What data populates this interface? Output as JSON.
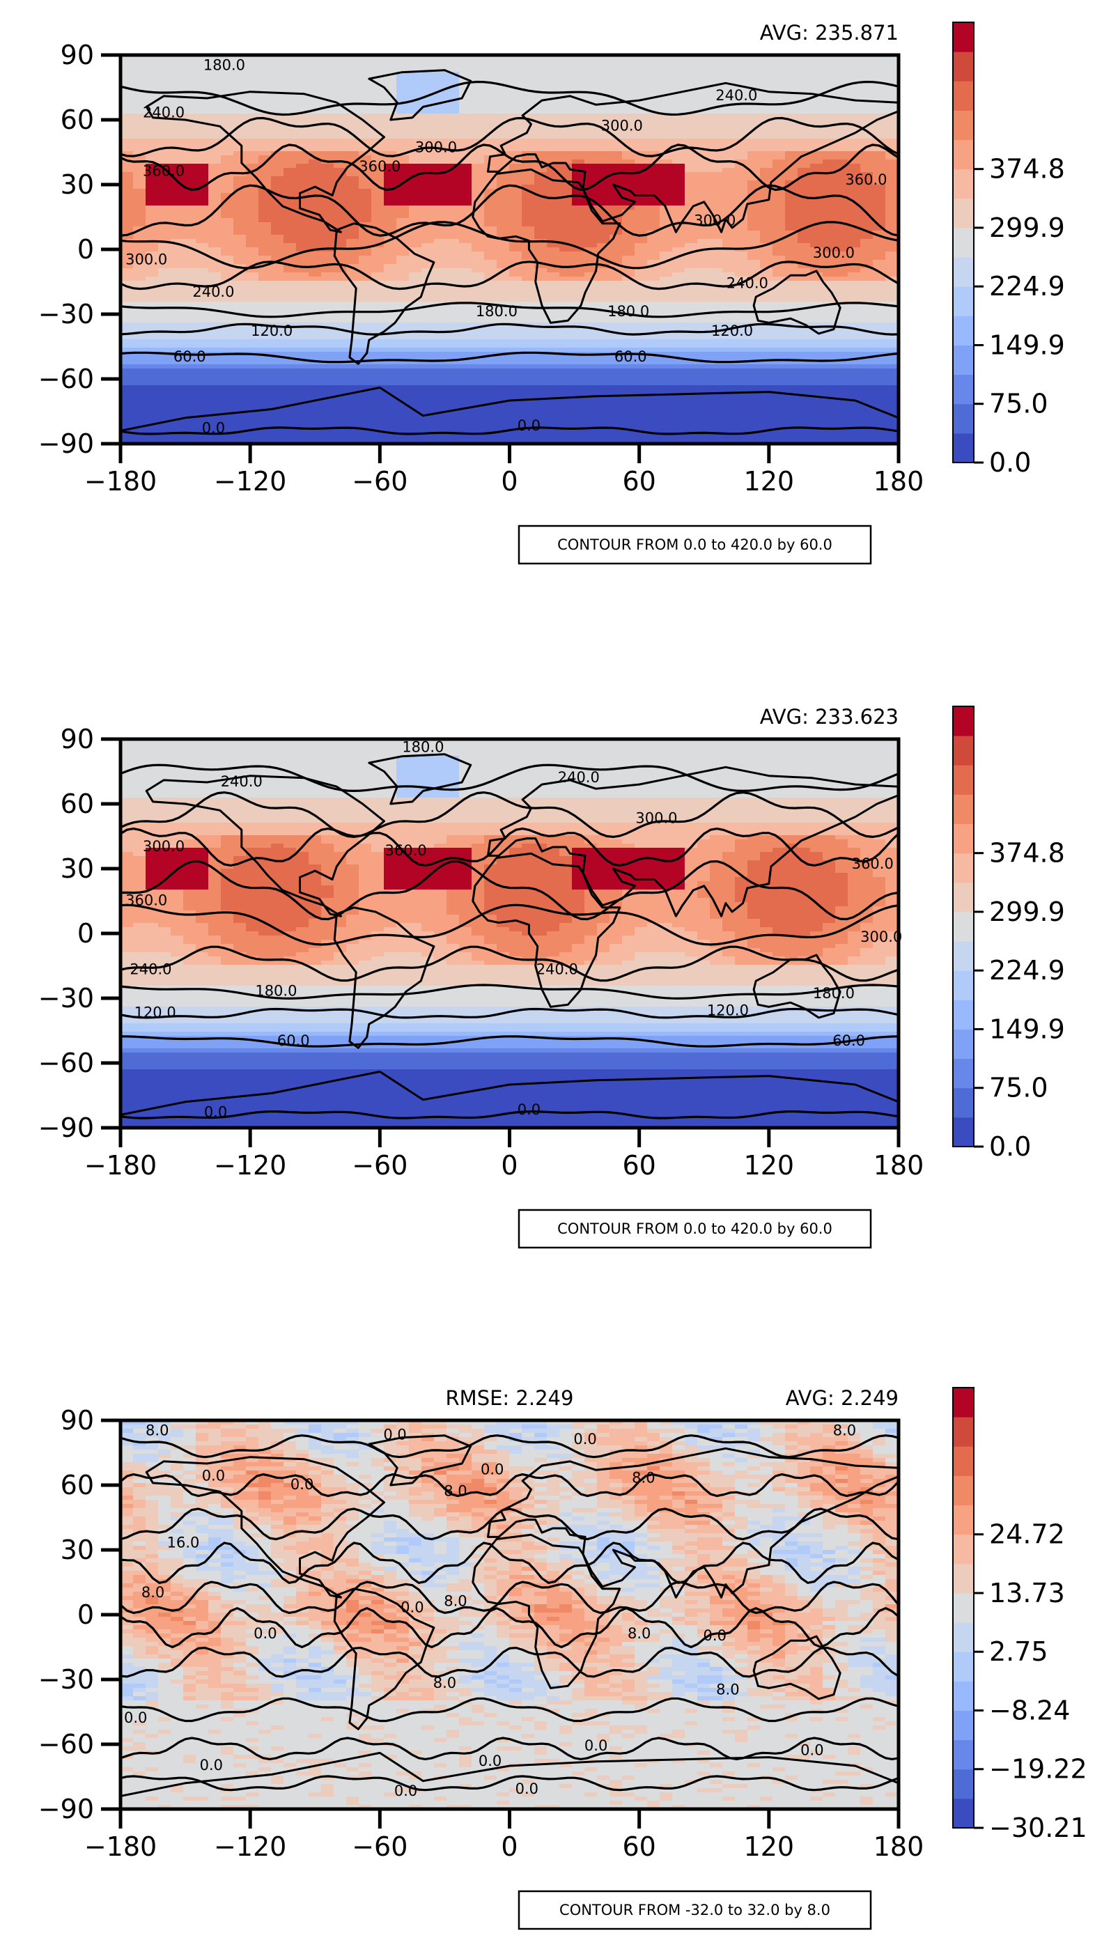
{
  "colors": {
    "ramp": [
      "#3b4cc0",
      "#4f6bd6",
      "#6788ea",
      "#7fa2f6",
      "#98b9fd",
      "#b0cbfa",
      "#c6d6f1",
      "#dbdcde",
      "#eccdbd",
      "#f5baa1",
      "#f6a283",
      "#f08a66",
      "#e36c4f",
      "#cf4a3a",
      "#b40426"
    ],
    "line": "#000000",
    "land_fill": "none"
  },
  "chart_data": [
    {
      "type": "heatmap",
      "panel": "test",
      "title": "",
      "left_text": "",
      "right_text": "AVG: 235.871",
      "xlim": [
        -180,
        180
      ],
      "ylim": [
        -90,
        90
      ],
      "xticks": [
        "-180",
        "-120",
        "-60",
        "0",
        "60",
        "120",
        "180"
      ],
      "yticks": [
        "90",
        "60",
        "30",
        "0",
        "-30",
        "-60",
        "-90"
      ],
      "colorbar": {
        "min": 0.0,
        "max": 420.0,
        "levels": 15,
        "ticks": [
          "0.0",
          "75.0",
          "149.9",
          "224.9",
          "299.9",
          "374.8"
        ]
      },
      "contour_note": "CONTOUR FROM 0.0 to 420.0 by 60.0",
      "contour_labels": [
        {
          "lon": -132,
          "lat": 85,
          "t": "180.0"
        },
        {
          "lon": -160,
          "lat": 63,
          "t": "240.0"
        },
        {
          "lon": 105,
          "lat": 71,
          "t": "240.0"
        },
        {
          "lon": 52,
          "lat": 57,
          "t": "300.0"
        },
        {
          "lon": -34,
          "lat": 47,
          "t": "300.0"
        },
        {
          "lon": -60,
          "lat": 38,
          "t": "360.0"
        },
        {
          "lon": -160,
          "lat": 36,
          "t": "360.0"
        },
        {
          "lon": 165,
          "lat": 32,
          "t": "360.0"
        },
        {
          "lon": 95,
          "lat": 13,
          "t": "300.0"
        },
        {
          "lon": 150,
          "lat": -2,
          "t": "300.0"
        },
        {
          "lon": -168,
          "lat": -5,
          "t": "300.0"
        },
        {
          "lon": -137,
          "lat": -20,
          "t": "240.0"
        },
        {
          "lon": 110,
          "lat": -16,
          "t": "240.0"
        },
        {
          "lon": -6,
          "lat": -29,
          "t": "180.0"
        },
        {
          "lon": 55,
          "lat": -29,
          "t": "180.0"
        },
        {
          "lon": -110,
          "lat": -38,
          "t": "120.0"
        },
        {
          "lon": 103,
          "lat": -38,
          "t": "120.0"
        },
        {
          "lon": -148,
          "lat": -50,
          "t": "60.0"
        },
        {
          "lon": 56,
          "lat": -50,
          "t": "60.0"
        },
        {
          "lon": -137,
          "lat": -83,
          "t": "0.0"
        },
        {
          "lon": 9,
          "lat": -82,
          "t": "0.0"
        }
      ],
      "contours": [
        {
          "lat": -84,
          "amp": 1.5,
          "fq": 3,
          "ph": 0.1
        },
        {
          "lat": -50,
          "amp": 2,
          "fq": 2,
          "ph": 0.6
        },
        {
          "lat": -37,
          "amp": 2,
          "fq": 3,
          "ph": 1.2
        },
        {
          "lat": -28,
          "amp": 2.5,
          "fq": 2,
          "ph": 2.0
        },
        {
          "lat": -12,
          "amp": 6,
          "fq": 3,
          "ph": 0.4
        },
        {
          "lat": 2,
          "amp": 8,
          "fq": 2,
          "ph": 2.5
        },
        {
          "lat": 18,
          "amp": 10,
          "fq": 3,
          "ph": 1.0
        },
        {
          "lat": 38,
          "amp": 8,
          "fq": 4,
          "ph": 2.1
        },
        {
          "lat": 52,
          "amp": 8,
          "fq": 3,
          "ph": 0.7
        },
        {
          "lat": 70,
          "amp": 6,
          "fq": 2,
          "ph": 1.7
        }
      ]
    },
    {
      "type": "heatmap",
      "panel": "reference",
      "title": "",
      "left_text": "",
      "right_text": "AVG: 233.623",
      "xlim": [
        -180,
        180
      ],
      "ylim": [
        -90,
        90
      ],
      "xticks": [
        "-180",
        "-120",
        "-60",
        "0",
        "60",
        "120",
        "180"
      ],
      "yticks": [
        "90",
        "60",
        "30",
        "0",
        "-30",
        "-60",
        "-90"
      ],
      "colorbar": {
        "min": 0.0,
        "max": 420.0,
        "levels": 15,
        "ticks": [
          "0.0",
          "75.0",
          "149.9",
          "224.9",
          "299.9",
          "374.8"
        ]
      },
      "contour_note": "CONTOUR FROM 0.0 to 420.0 by 60.0",
      "contour_labels": [
        {
          "lon": -40,
          "lat": 86,
          "t": "180.0"
        },
        {
          "lon": -124,
          "lat": 70,
          "t": "240.0"
        },
        {
          "lon": 32,
          "lat": 72,
          "t": "240.0"
        },
        {
          "lon": 68,
          "lat": 53,
          "t": "300.0"
        },
        {
          "lon": -160,
          "lat": 40,
          "t": "300.0"
        },
        {
          "lon": -48,
          "lat": 38,
          "t": "360.0"
        },
        {
          "lon": -168,
          "lat": 15,
          "t": "360.0"
        },
        {
          "lon": 168,
          "lat": 32,
          "t": "360.0"
        },
        {
          "lon": 172,
          "lat": -2,
          "t": "300.0"
        },
        {
          "lon": -166,
          "lat": -17,
          "t": "240.0"
        },
        {
          "lon": 22,
          "lat": -17,
          "t": "240.0"
        },
        {
          "lon": -108,
          "lat": -27,
          "t": "180.0"
        },
        {
          "lon": 150,
          "lat": -28,
          "t": "180.0"
        },
        {
          "lon": -164,
          "lat": -37,
          "t": "120.0"
        },
        {
          "lon": 101,
          "lat": -36,
          "t": "120.0"
        },
        {
          "lon": -100,
          "lat": -50,
          "t": "60.0"
        },
        {
          "lon": 157,
          "lat": -50,
          "t": "60.0"
        },
        {
          "lon": -136,
          "lat": -83,
          "t": "0.0"
        },
        {
          "lon": 9,
          "lat": -82,
          "t": "0.0"
        }
      ],
      "contours": [
        {
          "lat": -84,
          "amp": 1.5,
          "fq": 3,
          "ph": 0.3
        },
        {
          "lat": -50,
          "amp": 2,
          "fq": 2,
          "ph": 1.0
        },
        {
          "lat": -37,
          "amp": 2,
          "fq": 3,
          "ph": 0.2
        },
        {
          "lat": -27,
          "amp": 2.5,
          "fq": 2,
          "ph": 1.6
        },
        {
          "lat": -14,
          "amp": 6,
          "fq": 3,
          "ph": 2.2
        },
        {
          "lat": 4,
          "amp": 8,
          "fq": 2,
          "ph": 0.9
        },
        {
          "lat": 20,
          "amp": 10,
          "fq": 3,
          "ph": 2.8
        },
        {
          "lat": 40,
          "amp": 8,
          "fq": 4,
          "ph": 0.5
        },
        {
          "lat": 55,
          "amp": 8,
          "fq": 3,
          "ph": 1.9
        },
        {
          "lat": 72,
          "amp": 6,
          "fq": 2,
          "ph": 0.2
        }
      ]
    },
    {
      "type": "heatmap",
      "panel": "difference",
      "title": "",
      "left_text": "RMSE: 2.249",
      "right_text": "AVG: 2.249",
      "xlim": [
        -180,
        180
      ],
      "ylim": [
        -90,
        90
      ],
      "xticks": [
        "-180",
        "-120",
        "-60",
        "0",
        "60",
        "120",
        "180"
      ],
      "yticks": [
        "90",
        "60",
        "30",
        "0",
        "-30",
        "-60",
        "-90"
      ],
      "colorbar": {
        "min": -30.21,
        "max": 30.21,
        "levels": 15,
        "ticks": [
          "-30.21",
          "-19.22",
          "-8.24",
          "2.75",
          "13.73",
          "24.72"
        ]
      },
      "contour_note": "CONTOUR FROM -32.0 to 32.0 by 8.0",
      "contour_labels": [
        {
          "lon": -163,
          "lat": 85,
          "t": "8.0"
        },
        {
          "lon": -53,
          "lat": 83,
          "t": "0.0"
        },
        {
          "lon": 35,
          "lat": 81,
          "t": "0.0"
        },
        {
          "lon": 155,
          "lat": 85,
          "t": "8.0"
        },
        {
          "lon": -137,
          "lat": 64,
          "t": "0.0"
        },
        {
          "lon": -96,
          "lat": 60,
          "t": "0.0"
        },
        {
          "lon": -25,
          "lat": 57,
          "t": "8.0"
        },
        {
          "lon": -8,
          "lat": 67,
          "t": "0.0"
        },
        {
          "lon": 62,
          "lat": 63,
          "t": "8.0"
        },
        {
          "lon": -151,
          "lat": 33,
          "t": "16.0"
        },
        {
          "lon": -165,
          "lat": 10,
          "t": "8.0"
        },
        {
          "lon": -25,
          "lat": 6,
          "t": "8.0"
        },
        {
          "lon": -45,
          "lat": 3,
          "t": "0.0"
        },
        {
          "lon": -113,
          "lat": -9,
          "t": "0.0"
        },
        {
          "lon": 60,
          "lat": -9,
          "t": "8.0"
        },
        {
          "lon": 95,
          "lat": -10,
          "t": "0.0"
        },
        {
          "lon": -30,
          "lat": -32,
          "t": "8.0"
        },
        {
          "lon": 101,
          "lat": -35,
          "t": "8.0"
        },
        {
          "lon": -173,
          "lat": -48,
          "t": "0.0"
        },
        {
          "lon": -138,
          "lat": -70,
          "t": "0.0"
        },
        {
          "lon": 40,
          "lat": -61,
          "t": "0.0"
        },
        {
          "lon": -9,
          "lat": -68,
          "t": "0.0"
        },
        {
          "lon": 140,
          "lat": -63,
          "t": "0.0"
        },
        {
          "lon": -48,
          "lat": -82,
          "t": "0.0"
        },
        {
          "lon": 8,
          "lat": -81,
          "t": "0.0"
        }
      ],
      "contours": [
        {
          "lat": -78,
          "amp": 3,
          "fq": 4,
          "ph": 0.5
        },
        {
          "lat": -62,
          "amp": 4,
          "fq": 5,
          "ph": 1.4
        },
        {
          "lat": -44,
          "amp": 4,
          "fq": 4,
          "ph": 2.3
        },
        {
          "lat": -22,
          "amp": 6,
          "fq": 5,
          "ph": 0.8
        },
        {
          "lat": -6,
          "amp": 7,
          "fq": 6,
          "ph": 1.9
        },
        {
          "lat": 8,
          "amp": 7,
          "fq": 5,
          "ph": 0.3
        },
        {
          "lat": 24,
          "amp": 7,
          "fq": 6,
          "ph": 2.6
        },
        {
          "lat": 42,
          "amp": 6,
          "fq": 5,
          "ph": 1.1
        },
        {
          "lat": 60,
          "amp": 5,
          "fq": 6,
          "ph": 0.2
        },
        {
          "lat": 78,
          "amp": 4,
          "fq": 4,
          "ph": 1.6
        }
      ]
    }
  ]
}
